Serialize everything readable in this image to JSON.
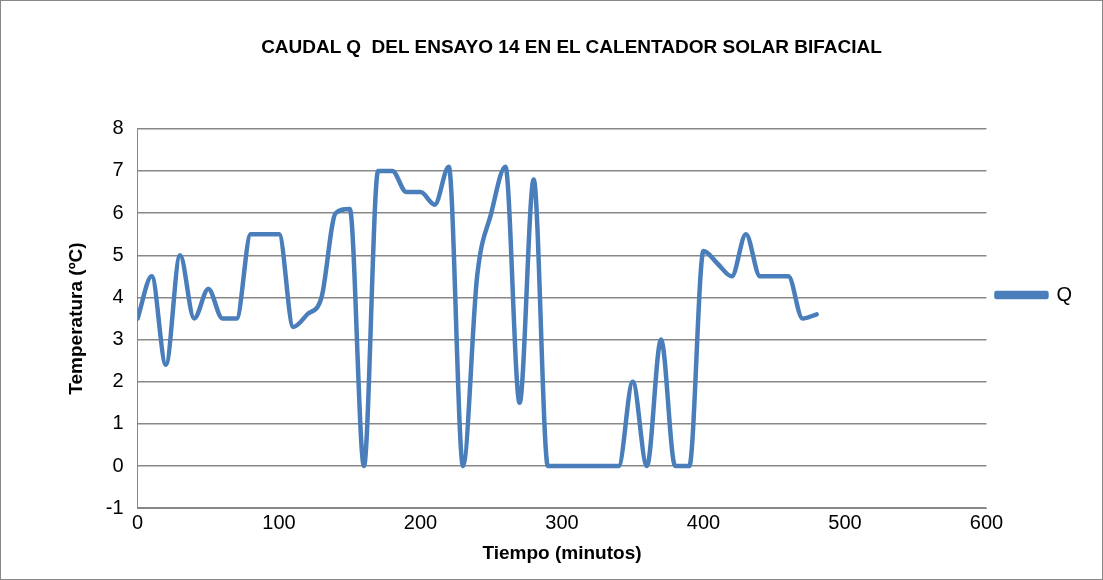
{
  "chart_data": {
    "type": "line",
    "title": "CAUDAL Q  DEL ENSAYO 14 EN EL CALENTADOR SOLAR BIFACIAL",
    "xlabel": "Tiempo (minutos)",
    "ylabel": "Temperatura (ºC)",
    "x": [
      0,
      10,
      20,
      30,
      40,
      50,
      60,
      70,
      80,
      90,
      100,
      110,
      120,
      130,
      140,
      150,
      160,
      170,
      180,
      190,
      200,
      210,
      220,
      230,
      240,
      250,
      260,
      270,
      280,
      290,
      300,
      310,
      320,
      330,
      340,
      350,
      360,
      370,
      380,
      390,
      400,
      410,
      420,
      430,
      440,
      450,
      460,
      470,
      480
    ],
    "series": [
      {
        "name": "Q",
        "color": "#4a7ebb",
        "values": [
          3.5,
          4.5,
          2.4,
          5,
          3.5,
          4.2,
          3.5,
          3.5,
          5.5,
          5.5,
          5.5,
          3.3,
          3.6,
          4,
          6,
          6.1,
          0,
          7,
          7,
          6.5,
          6.5,
          6.2,
          7.1,
          0,
          4.5,
          6,
          7.1,
          1.5,
          6.8,
          0,
          0,
          0,
          0,
          0,
          0,
          2,
          0,
          3,
          0,
          0,
          5.1,
          4.8,
          4.5,
          5.5,
          4.5,
          4.5,
          4.5,
          3.5,
          3.6
        ]
      }
    ],
    "xlim": [
      0,
      600
    ],
    "xticks": [
      0,
      100,
      200,
      300,
      400,
      500,
      600
    ],
    "ylim": [
      -1,
      8
    ],
    "yticks": [
      -1,
      0,
      1,
      2,
      3,
      4,
      5,
      6,
      7,
      8
    ],
    "grid": "y",
    "legend": "right",
    "marker": "none",
    "line_style": "solid"
  }
}
